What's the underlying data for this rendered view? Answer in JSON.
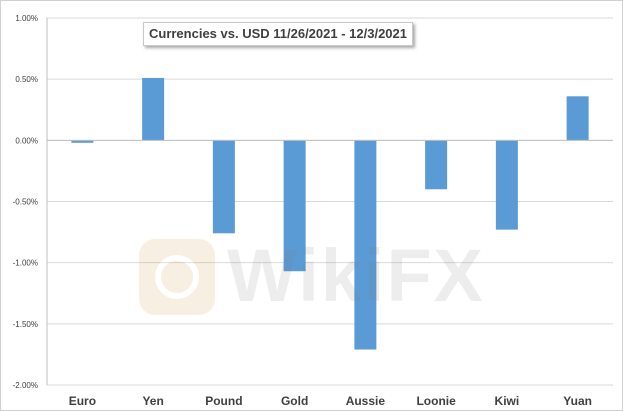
{
  "chart_data": {
    "type": "bar",
    "title": "Currencies vs. USD 11/26/2021 - 12/3/2021",
    "categories": [
      "Euro",
      "Yen",
      "Pound",
      "Gold",
      "Aussie",
      "Loonie",
      "Kiwi",
      "Yuan"
    ],
    "values": [
      -0.02,
      0.51,
      -0.76,
      -1.07,
      -1.71,
      -0.4,
      -0.73,
      0.36
    ],
    "value_unit": "percent",
    "ylim": [
      -2.0,
      1.0
    ],
    "yticks": [
      1.0,
      0.5,
      0.0,
      -0.5,
      -1.0,
      -1.5,
      -2.0
    ],
    "ytick_labels": [
      "1.00%",
      "0.50%",
      "0.00%",
      "-0.50%",
      "-1.00%",
      "-1.50%",
      "-2.00%"
    ],
    "bar_color": "#5b9bd5",
    "grid": true,
    "legend": "none"
  },
  "watermark": {
    "text": "WikiFX",
    "icon": "wikifx-logo-icon"
  }
}
